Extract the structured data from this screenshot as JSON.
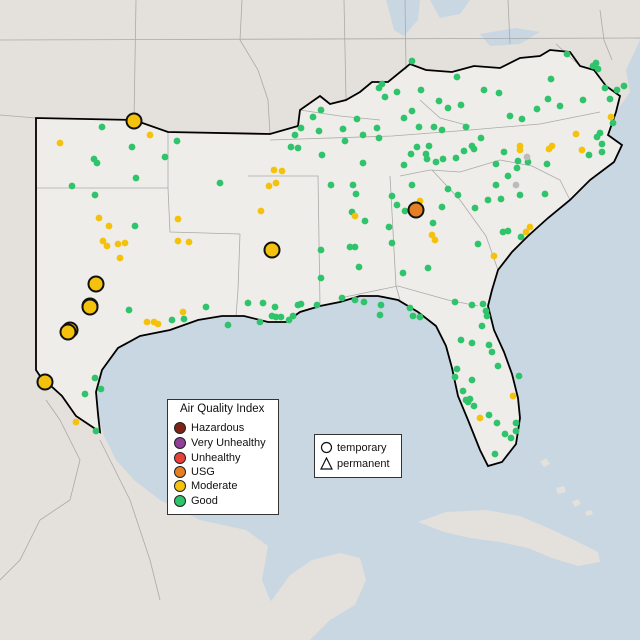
{
  "legend": {
    "title": "Air Quality Index",
    "items": [
      {
        "label": "Hazardous",
        "color": "#7e2417"
      },
      {
        "label": "Very Unhealthy",
        "color": "#8f3f97"
      },
      {
        "label": "Unhealthy",
        "color": "#e8413a"
      },
      {
        "label": "USG",
        "color": "#e67e22"
      },
      {
        "label": "Moderate",
        "color": "#f4c20d"
      },
      {
        "label": "Good",
        "color": "#2fc46c"
      }
    ]
  },
  "monitor_type_legend": {
    "items": [
      {
        "label": "temporary",
        "icon": "circle-icon"
      },
      {
        "label": "permanent",
        "icon": "triangle-icon"
      }
    ]
  },
  "colors": {
    "ocean": "#c9d7e3",
    "land": "#e7e3de",
    "highlighted_states": "#efede9",
    "state_border": "#aaaaaa",
    "region_outline": "#000000"
  }
}
